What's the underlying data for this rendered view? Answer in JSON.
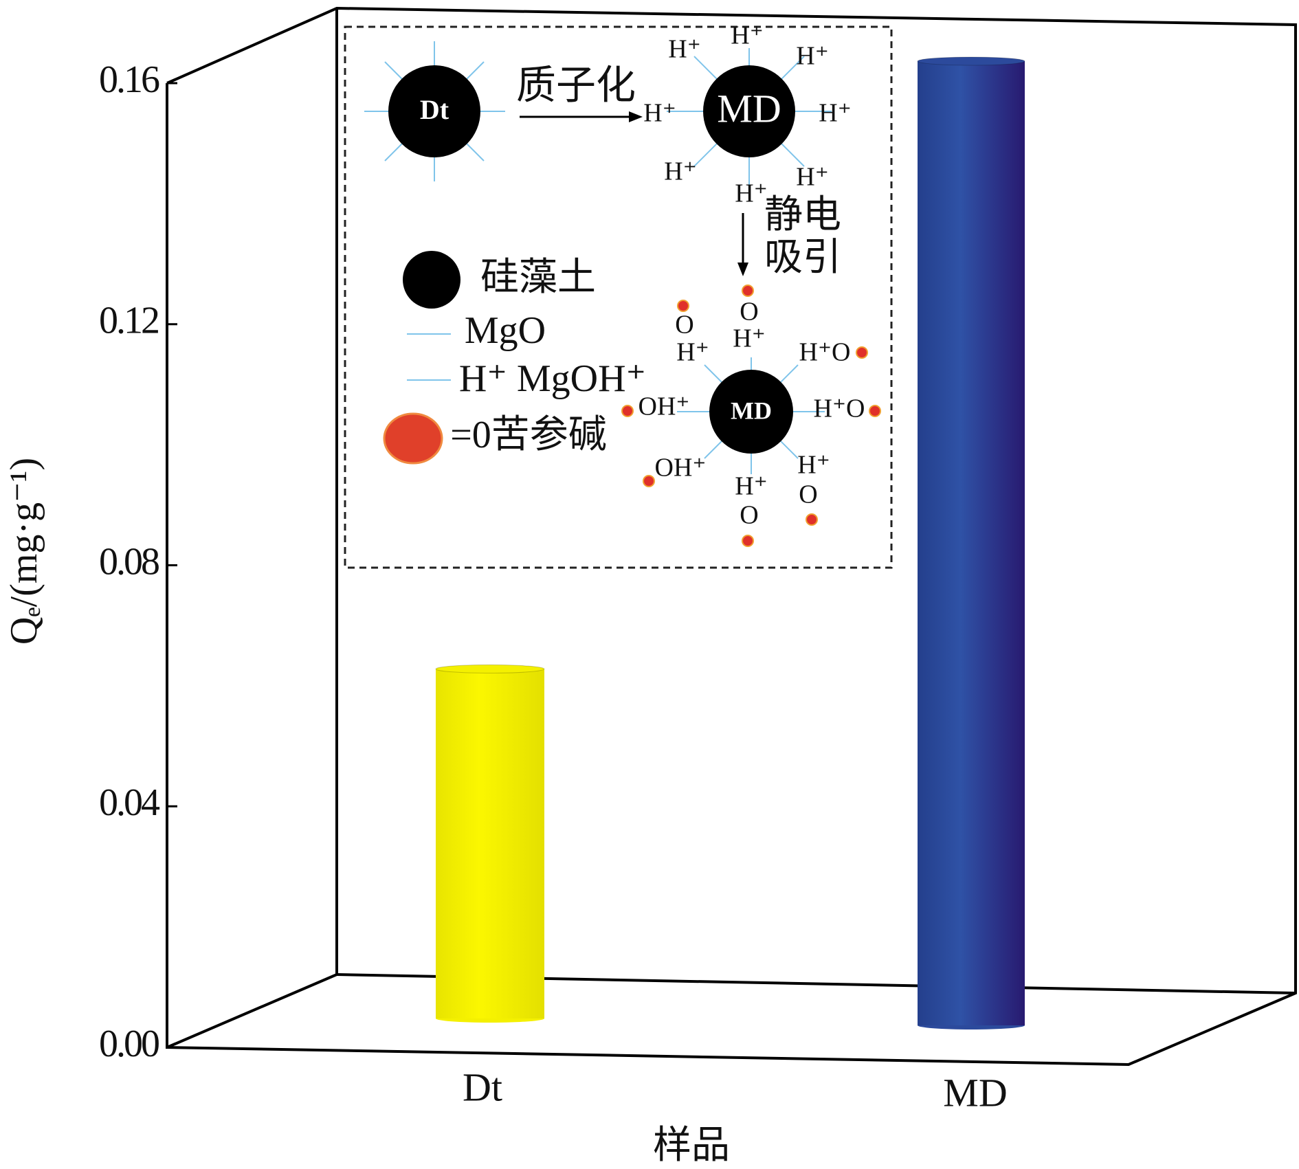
{
  "chart_data": {
    "type": "bar",
    "categories": [
      "Dt",
      "MD"
    ],
    "values": [
      0.058,
      0.16
    ],
    "colors": [
      "#f4f000",
      "#2c4a9c"
    ],
    "ylim": [
      0,
      0.16
    ],
    "yticks": [
      {
        "value": 0,
        "label": "0.00"
      },
      0.04,
      0.08,
      0.12,
      0.16
    ],
    "y_label": "Qₑ/(mg·g⁻¹)",
    "x_label": "样品",
    "annotations": [
      "Dt",
      "质子化",
      "MD",
      "H⁺",
      "H⁺",
      "H⁺",
      "H⁺",
      "H⁺",
      "H⁺",
      "H⁺",
      "H⁺",
      "静电",
      "吸引",
      "硅藻土",
      "MgO",
      "H⁺ MgOH⁺",
      "=0苦参碱",
      "MD",
      "O",
      "O",
      "H⁺",
      "H⁺",
      "H⁺O",
      "OH⁺",
      "H⁺O",
      "OH⁺",
      "H⁺",
      "O",
      "H⁺",
      "O"
    ]
  }
}
